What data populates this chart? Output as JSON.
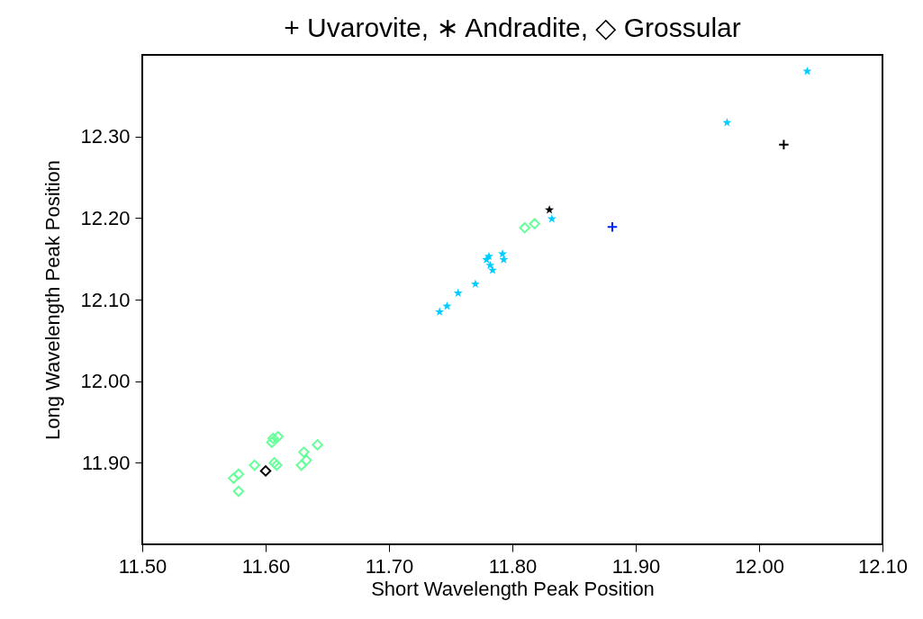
{
  "chart_data": {
    "type": "scatter",
    "title": "+ Uvarovite, ∗ Andradite, ◇ Grossular",
    "xlabel": "Short Wavelength Peak Position",
    "ylabel": "Long Wavelength Peak Position",
    "xlim": [
      11.5,
      12.1
    ],
    "xticks": [
      {
        "value": 11.5,
        "label": "11.50"
      },
      {
        "value": 11.6,
        "label": "11.60"
      },
      {
        "value": 11.7,
        "label": "11.70"
      },
      {
        "value": 11.8,
        "label": "11.80"
      },
      {
        "value": 11.9,
        "label": "11.90"
      },
      {
        "value": 12.0,
        "label": "12.00"
      },
      {
        "value": 12.1,
        "label": "12.10"
      }
    ],
    "ylim": [
      11.8,
      12.4
    ],
    "yticks": [
      {
        "value": 11.9,
        "label": "11.90"
      },
      {
        "value": 12.0,
        "label": "12.00"
      },
      {
        "value": 12.1,
        "label": "12.10"
      },
      {
        "value": 12.2,
        "label": "12.20"
      },
      {
        "value": 12.3,
        "label": "12.30"
      }
    ],
    "series": [
      {
        "color": "#66ff99",
        "marker": "diamond",
        "x": [
          11.606,
          11.61,
          11.605,
          11.631,
          11.633,
          11.629,
          11.642,
          11.578,
          11.574,
          11.578,
          11.591,
          11.607,
          11.609,
          11.81,
          11.818
        ],
        "values": [
          11.93,
          11.932,
          11.925,
          11.913,
          11.903,
          11.897,
          11.922,
          11.886,
          11.881,
          11.865,
          11.897,
          11.9,
          11.897,
          12.188,
          12.193
        ]
      },
      {
        "color": "#000000",
        "marker": "diamond",
        "x": [
          11.6
        ],
        "values": [
          11.89
        ]
      },
      {
        "color": "#00ccff",
        "marker": "star",
        "x": [
          11.741,
          11.747,
          11.756,
          11.77,
          11.781,
          11.782,
          11.784,
          11.792,
          11.793,
          11.779,
          11.832,
          11.974,
          12.039
        ],
        "values": [
          12.085,
          12.092,
          12.108,
          12.119,
          12.153,
          12.142,
          12.136,
          12.156,
          12.149,
          12.149,
          12.199,
          12.317,
          12.38
        ]
      },
      {
        "color": "#000000",
        "marker": "star",
        "x": [
          11.83
        ],
        "values": [
          12.21
        ]
      },
      {
        "color": "#0022ff",
        "marker": "cross",
        "x": [
          11.881
        ],
        "values": [
          12.189
        ]
      },
      {
        "color": "#000000",
        "marker": "cross",
        "x": [
          12.02
        ],
        "values": [
          12.29
        ]
      }
    ]
  }
}
